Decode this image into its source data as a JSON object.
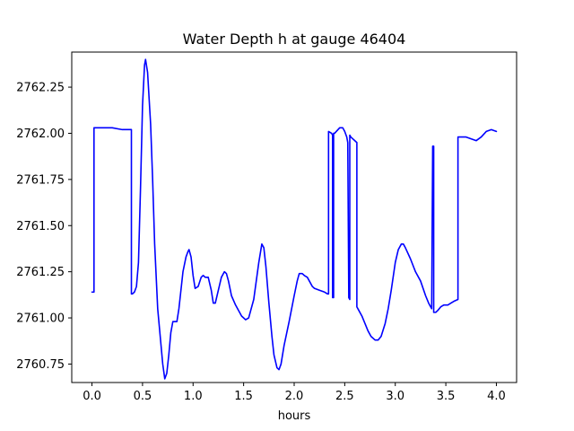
{
  "chart_data": {
    "type": "line",
    "title": "Water Depth h at gauge 46404",
    "xlabel": "hours",
    "ylabel": "",
    "xlim": [
      -0.2,
      4.2
    ],
    "ylim": [
      2760.65,
      2762.44
    ],
    "xticks": [
      0.0,
      0.5,
      1.0,
      1.5,
      2.0,
      2.5,
      3.0,
      3.5,
      4.0
    ],
    "xtick_labels": [
      "0.0",
      "0.5",
      "1.0",
      "1.5",
      "2.0",
      "2.5",
      "3.0",
      "3.5",
      "4.0"
    ],
    "yticks": [
      2760.75,
      2761.0,
      2761.25,
      2761.5,
      2761.75,
      2762.0,
      2762.25
    ],
    "ytick_labels": [
      "2760.75",
      "2761.00",
      "2761.25",
      "2761.50",
      "2761.75",
      "2762.00",
      "2762.25"
    ],
    "grid": false,
    "colors": {
      "series": "#0000ff",
      "axes": "#000000",
      "background": "#ffffff"
    },
    "series": [
      {
        "name": "",
        "x": [
          0.0,
          0.02,
          0.02,
          0.05,
          0.1,
          0.2,
          0.3,
          0.35,
          0.38,
          0.39,
          0.39,
          0.4,
          0.42,
          0.44,
          0.46,
          0.48,
          0.5,
          0.52,
          0.53,
          0.55,
          0.58,
          0.6,
          0.62,
          0.65,
          0.7,
          0.72,
          0.74,
          0.76,
          0.78,
          0.8,
          0.82,
          0.84,
          0.86,
          0.88,
          0.9,
          0.93,
          0.95,
          0.96,
          0.98,
          1.0,
          1.02,
          1.05,
          1.08,
          1.1,
          1.12,
          1.15,
          1.18,
          1.2,
          1.22,
          1.25,
          1.28,
          1.31,
          1.33,
          1.35,
          1.38,
          1.42,
          1.48,
          1.52,
          1.55,
          1.6,
          1.65,
          1.68,
          1.7,
          1.72,
          1.75,
          1.78,
          1.8,
          1.83,
          1.85,
          1.87,
          1.9,
          1.95,
          2.0,
          2.03,
          2.05,
          2.08,
          2.1,
          2.13,
          2.15,
          2.18,
          2.2,
          2.25,
          2.3,
          2.33,
          2.34,
          2.34,
          2.37,
          2.38,
          2.38,
          2.39,
          2.39,
          2.4,
          2.45,
          2.48,
          2.5,
          2.52,
          2.53,
          2.54,
          2.54,
          2.55,
          2.55,
          2.56,
          2.62,
          2.62,
          2.64,
          2.67,
          2.7,
          2.73,
          2.76,
          2.8,
          2.83,
          2.86,
          2.9,
          2.93,
          2.96,
          3.0,
          3.03,
          3.06,
          3.08,
          3.1,
          3.15,
          3.2,
          3.25,
          3.3,
          3.33,
          3.35,
          3.36,
          3.37,
          3.38,
          3.38,
          3.39,
          3.4,
          3.42,
          3.45,
          3.48,
          3.52,
          3.55,
          3.58,
          3.62,
          3.62,
          3.65,
          3.7,
          3.75,
          3.8,
          3.85,
          3.9,
          3.95,
          4.0
        ],
        "y": [
          2761.14,
          2761.14,
          2762.03,
          2762.03,
          2762.03,
          2762.03,
          2762.02,
          2762.02,
          2762.02,
          2762.02,
          2761.13,
          2761.13,
          2761.14,
          2761.17,
          2761.3,
          2761.7,
          2762.15,
          2762.37,
          2762.4,
          2762.33,
          2762.05,
          2761.75,
          2761.4,
          2761.05,
          2760.75,
          2760.67,
          2760.7,
          2760.8,
          2760.92,
          2760.98,
          2760.98,
          2760.98,
          2761.05,
          2761.15,
          2761.25,
          2761.33,
          2761.36,
          2761.37,
          2761.33,
          2761.23,
          2761.16,
          2761.17,
          2761.22,
          2761.23,
          2761.22,
          2761.22,
          2761.15,
          2761.08,
          2761.08,
          2761.15,
          2761.22,
          2761.25,
          2761.24,
          2761.2,
          2761.12,
          2761.07,
          2761.01,
          2760.99,
          2761.0,
          2761.1,
          2761.3,
          2761.4,
          2761.38,
          2761.28,
          2761.08,
          2760.9,
          2760.8,
          2760.73,
          2760.72,
          2760.75,
          2760.85,
          2760.98,
          2761.12,
          2761.2,
          2761.24,
          2761.24,
          2761.23,
          2761.22,
          2761.2,
          2761.17,
          2761.16,
          2761.15,
          2761.14,
          2761.13,
          2761.13,
          2762.01,
          2762.0,
          2761.99,
          2761.11,
          2761.11,
          2762.0,
          2762.0,
          2762.03,
          2762.03,
          2762.01,
          2761.98,
          2761.95,
          2761.12,
          2761.11,
          2761.1,
          2761.99,
          2761.98,
          2761.95,
          2761.06,
          2761.04,
          2761.01,
          2760.97,
          2760.93,
          2760.9,
          2760.88,
          2760.88,
          2760.9,
          2760.97,
          2761.05,
          2761.15,
          2761.3,
          2761.37,
          2761.4,
          2761.4,
          2761.38,
          2761.32,
          2761.25,
          2761.2,
          2761.12,
          2761.08,
          2761.06,
          2761.05,
          2761.93,
          2761.93,
          2761.03,
          2761.03,
          2761.03,
          2761.04,
          2761.06,
          2761.07,
          2761.07,
          2761.08,
          2761.09,
          2761.1,
          2761.98,
          2761.98,
          2761.98,
          2761.97,
          2761.96,
          2761.98,
          2762.01,
          2762.02,
          2762.01
        ]
      }
    ]
  }
}
